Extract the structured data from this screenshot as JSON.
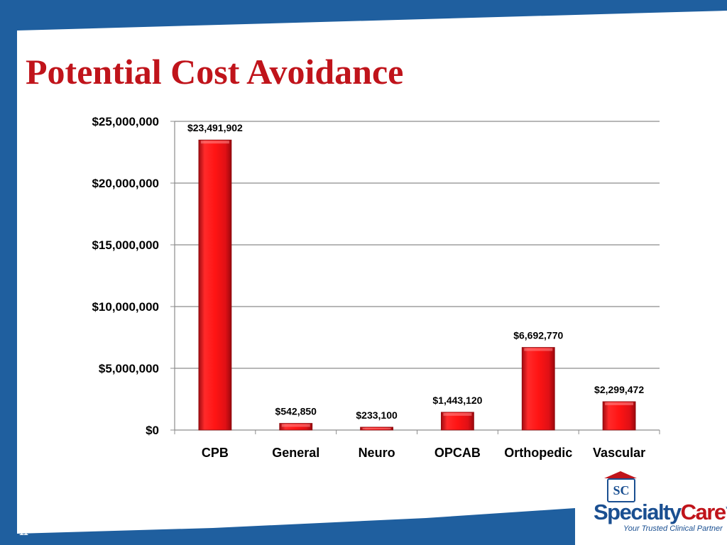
{
  "slide": {
    "title": "Potential Cost Avoidance",
    "page_number": "11",
    "colors": {
      "background_blue": "#1f5f9f",
      "title_red": "#c0141b",
      "bar_red": "#e8141b"
    }
  },
  "logo": {
    "emblem_text": "SC",
    "brand_specialty": "Specialty",
    "brand_care": "Care",
    "trademark": "™",
    "tagline": "Your Trusted Clinical Partner"
  },
  "chart_data": {
    "type": "bar",
    "title": "",
    "xlabel": "",
    "ylabel": "",
    "categories": [
      "CPB",
      "General",
      "Neuro",
      "OPCAB",
      "Orthopedic",
      "Vascular"
    ],
    "values": [
      23491902,
      542850,
      233100,
      1443120,
      6692770,
      2299472
    ],
    "data_labels": [
      "$23,491,902",
      "$542,850",
      "$233,100",
      "$1,443,120",
      "$6,692,770",
      "$2,299,472"
    ],
    "ylim": [
      0,
      25000000
    ],
    "yticks": [
      0,
      5000000,
      10000000,
      15000000,
      20000000,
      25000000
    ],
    "ytick_labels": [
      "$0",
      "$5,000,000",
      "$10,000,000",
      "$15,000,000",
      "$20,000,000",
      "$25,000,000"
    ],
    "grid": true,
    "legend": "none",
    "bar_color": "#e8141b"
  }
}
